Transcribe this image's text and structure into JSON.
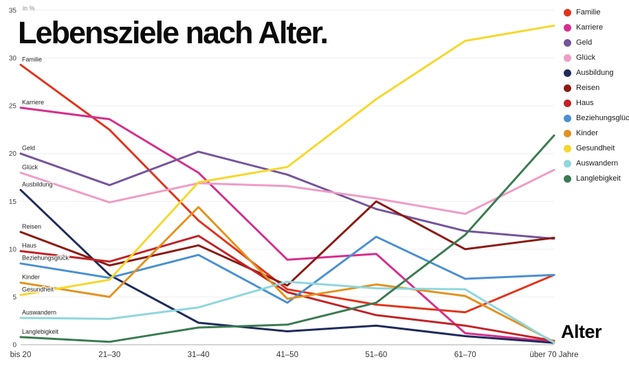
{
  "title": "Lebensziele nach Alter.",
  "y_axis_unit": "in %",
  "x_axis_label": "Alter",
  "chart_data": {
    "type": "line",
    "title": "Lebensziele nach Alter.",
    "xlabel": "Alter",
    "ylabel": "in %",
    "ylim": [
      0,
      35
    ],
    "yticks": [
      0,
      5,
      10,
      15,
      20,
      25,
      30,
      35
    ],
    "grid": true,
    "legend_position": "top-right",
    "categories": [
      "bis 20",
      "21–30",
      "31–40",
      "41–50",
      "51–60",
      "61–70",
      "über 70 Jahre"
    ],
    "series": [
      {
        "name": "Familie",
        "color": "#e2341c",
        "values": [
          29.3,
          22.5,
          13.0,
          5.8,
          4.2,
          3.4,
          7.3
        ]
      },
      {
        "name": "Karriere",
        "color": "#d62e8c",
        "values": [
          24.8,
          23.6,
          18.0,
          8.9,
          9.5,
          1.2,
          0.3
        ]
      },
      {
        "name": "Geld",
        "color": "#75549b",
        "values": [
          20.0,
          16.7,
          20.2,
          17.8,
          14.2,
          11.9,
          11.1
        ]
      },
      {
        "name": "Glück",
        "color": "#ef9cc6",
        "values": [
          18.0,
          14.9,
          16.9,
          16.6,
          15.3,
          13.7,
          18.3
        ]
      },
      {
        "name": "Ausbildung",
        "color": "#1f2b5b",
        "values": [
          16.2,
          7.3,
          2.3,
          1.4,
          2.0,
          0.9,
          0.2
        ]
      },
      {
        "name": "Reisen",
        "color": "#8c1a12",
        "values": [
          11.8,
          8.3,
          10.4,
          6.2,
          15.0,
          10.0,
          11.2
        ]
      },
      {
        "name": "Haus",
        "color": "#c22326",
        "values": [
          9.8,
          8.7,
          11.4,
          5.5,
          3.1,
          2.0,
          0.4
        ]
      },
      {
        "name": "Beziehungsglück",
        "color": "#4a8fd3",
        "values": [
          8.5,
          7.0,
          9.4,
          4.4,
          11.3,
          6.9,
          7.3
        ]
      },
      {
        "name": "Kinder",
        "color": "#e3921e",
        "values": [
          6.5,
          5.0,
          14.4,
          4.8,
          6.3,
          5.1,
          0.3
        ]
      },
      {
        "name": "Gesundheit",
        "color": "#f6d829",
        "values": [
          5.2,
          6.8,
          17.0,
          18.6,
          25.7,
          31.8,
          33.4
        ]
      },
      {
        "name": "Auswandern",
        "color": "#8ed6de",
        "values": [
          2.8,
          2.7,
          3.9,
          6.6,
          5.9,
          5.8,
          0.2
        ]
      },
      {
        "name": "Langlebigkeit",
        "color": "#3a7b51",
        "values": [
          0.8,
          0.3,
          1.8,
          2.1,
          4.4,
          11.5,
          21.9
        ]
      }
    ]
  }
}
